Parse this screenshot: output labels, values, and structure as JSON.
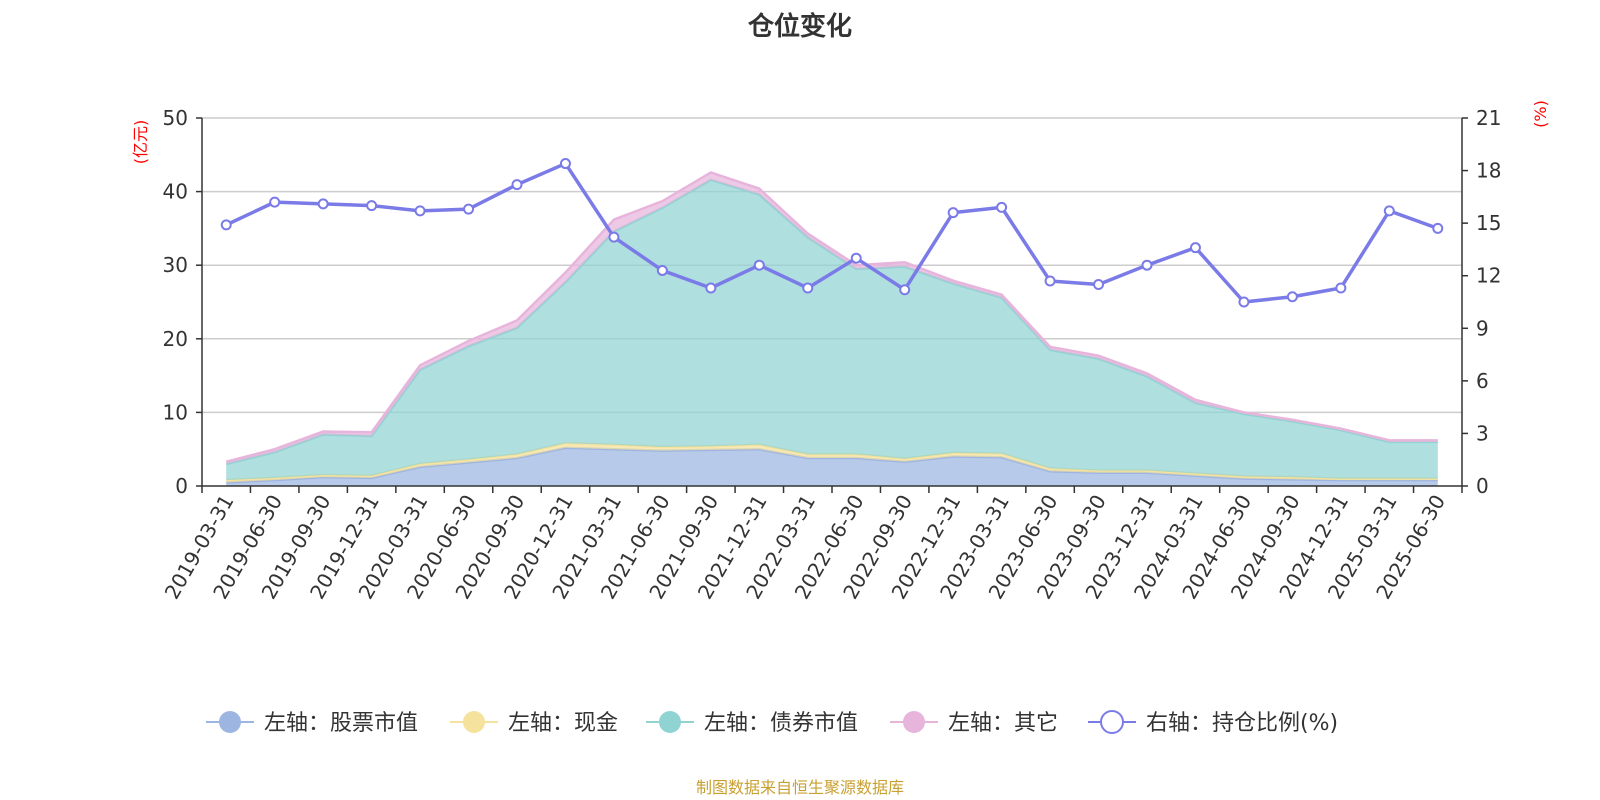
{
  "chart_data": {
    "type": "area",
    "title": "仓位变化",
    "left_axis_unit": "(亿元)",
    "right_axis_unit": "(%)",
    "ylim_left": [
      0,
      50
    ],
    "yticks_left": [
      0,
      10,
      20,
      30,
      40,
      50
    ],
    "ylim_right": [
      0,
      21
    ],
    "yticks_right": [
      0,
      3,
      6,
      9,
      12,
      15,
      18,
      21
    ],
    "grid": true,
    "legend_position": "bottom",
    "categories": [
      "2019-03-31",
      "2019-06-30",
      "2019-09-30",
      "2019-12-31",
      "2020-03-31",
      "2020-06-30",
      "2020-09-30",
      "2020-12-31",
      "2021-03-31",
      "2021-06-30",
      "2021-09-30",
      "2021-12-31",
      "2022-03-31",
      "2022-06-30",
      "2022-09-30",
      "2022-12-31",
      "2023-03-31",
      "2023-06-30",
      "2023-09-30",
      "2023-12-31",
      "2024-03-31",
      "2024-06-30",
      "2024-09-30",
      "2024-12-31",
      "2025-03-31",
      "2025-06-30"
    ],
    "series": [
      {
        "name": "左轴：股票市值",
        "axis": "left",
        "kind": "stacked-area",
        "color": "#9db5e1",
        "values": [
          0.5,
          0.8,
          1.2,
          1.1,
          2.6,
          3.2,
          3.8,
          5.2,
          5.0,
          4.8,
          4.9,
          5.0,
          3.8,
          3.8,
          3.3,
          4.0,
          3.9,
          2.0,
          1.8,
          1.8,
          1.4,
          1.0,
          0.9,
          0.8,
          0.8,
          0.8
        ]
      },
      {
        "name": "左轴：现金",
        "axis": "left",
        "kind": "stacked-area",
        "color": "#f5e29c",
        "values": [
          0.3,
          0.3,
          0.3,
          0.3,
          0.4,
          0.4,
          0.5,
          0.6,
          0.6,
          0.5,
          0.5,
          0.6,
          0.5,
          0.5,
          0.4,
          0.5,
          0.5,
          0.4,
          0.3,
          0.3,
          0.3,
          0.3,
          0.3,
          0.2,
          0.2,
          0.2
        ]
      },
      {
        "name": "左轴：债券市值",
        "axis": "left",
        "kind": "stacked-area",
        "color": "#90d3d3",
        "values": [
          2.2,
          3.5,
          5.5,
          5.4,
          12.8,
          15.4,
          17.2,
          21.9,
          29.0,
          32.5,
          36.2,
          34.0,
          29.5,
          25.2,
          26.1,
          23.0,
          21.2,
          16.1,
          15.2,
          12.8,
          9.6,
          8.5,
          7.6,
          6.6,
          5.0,
          5.0
        ]
      },
      {
        "name": "左轴：其它",
        "axis": "left",
        "kind": "stacked-area",
        "color": "#e7b4dc",
        "values": [
          0.3,
          0.4,
          0.4,
          0.5,
          0.6,
          0.7,
          1.0,
          1.3,
          1.6,
          0.9,
          1.0,
          0.8,
          0.5,
          0.5,
          0.6,
          0.4,
          0.4,
          0.4,
          0.4,
          0.4,
          0.4,
          0.2,
          0.2,
          0.2,
          0.2,
          0.2
        ]
      },
      {
        "name": "右轴：持仓比例(%)",
        "axis": "right",
        "kind": "line",
        "color": "#7b7be8",
        "values": [
          14.9,
          16.2,
          16.1,
          16.0,
          15.7,
          15.8,
          17.2,
          18.4,
          14.2,
          12.3,
          11.3,
          12.6,
          11.3,
          13.0,
          11.2,
          15.6,
          15.9,
          11.7,
          11.5,
          12.6,
          13.6,
          10.5,
          10.8,
          11.3,
          15.7,
          14.7
        ]
      }
    ]
  },
  "source_note": "制图数据来自恒生聚源数据库"
}
